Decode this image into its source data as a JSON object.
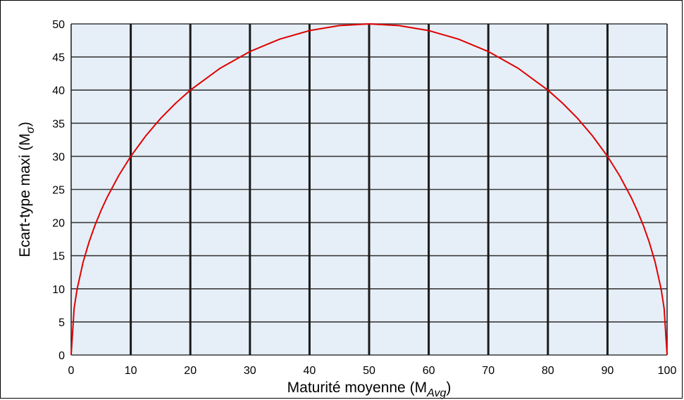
{
  "chart_data": {
    "type": "line",
    "xlabel": "Maturité moyenne (M",
    "xlabel_sub": "Avg",
    "xlabel_close": ")",
    "ylabel": "Ecart-type maxi (M",
    "ylabel_sub": "σ",
    "ylabel_close": ")",
    "xlim": [
      0,
      100
    ],
    "ylim": [
      0,
      50
    ],
    "x_ticks": [
      0,
      10,
      20,
      30,
      40,
      50,
      60,
      70,
      80,
      90,
      100
    ],
    "y_ticks": [
      0,
      5,
      10,
      15,
      20,
      25,
      30,
      35,
      40,
      45,
      50
    ],
    "grid": true,
    "plot_background": "#e6eff8",
    "vertical_grid_color": "#1a1a1a",
    "horizontal_grid_color": "#3a3a3a",
    "series": [
      {
        "color": "#e00000",
        "x": [
          0,
          0.5,
          1,
          2,
          3,
          4,
          5,
          6,
          8,
          10,
          12.5,
          15,
          17.5,
          20,
          25,
          30,
          35,
          40,
          45,
          50,
          55,
          60,
          65,
          70,
          75,
          80,
          82.5,
          85,
          87.5,
          90,
          92,
          94,
          95,
          96,
          97,
          98,
          99,
          99.5,
          100
        ],
        "y": [
          0,
          7.05,
          9.95,
          14.0,
          17.06,
          19.6,
          21.79,
          23.75,
          27.13,
          30.0,
          33.07,
          35.71,
          37.99,
          40.0,
          43.3,
          45.83,
          47.7,
          48.99,
          49.75,
          50.0,
          49.75,
          48.99,
          47.7,
          45.83,
          43.3,
          40.0,
          37.99,
          35.71,
          33.07,
          30.0,
          27.13,
          23.75,
          21.79,
          19.6,
          17.06,
          14.0,
          9.95,
          7.05,
          0
        ]
      }
    ]
  }
}
